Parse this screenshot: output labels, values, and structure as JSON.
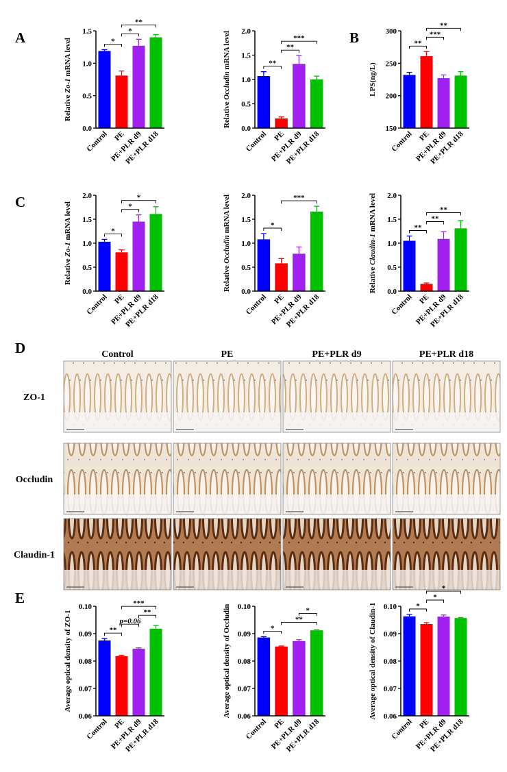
{
  "panels": [
    "A",
    "B",
    "C",
    "D",
    "E"
  ],
  "chart_data": [
    {
      "type": "bar",
      "ylabel": [
        "Relative ",
        "Zo-1",
        " mRNA level"
      ],
      "categories": [
        "Control",
        "PE",
        "PE+PLR d9",
        "PE+PLR d18"
      ],
      "colors": [
        "#0000ff",
        "#ff0000",
        "#a020f0",
        "#00c000"
      ],
      "values": [
        1.19,
        0.81,
        1.27,
        1.4
      ],
      "errors": [
        0.02,
        0.07,
        0.1,
        0.04
      ],
      "ylim": [
        0,
        1.5
      ],
      "yticks": [
        {
          "value": 0,
          "label": "0.0"
        },
        0.5,
        {
          "value": 1,
          "label": "1.0"
        },
        1.5
      ],
      "significance": [
        {
          "from": 0,
          "to": 1,
          "label": "*"
        },
        {
          "from": 1,
          "to": 2,
          "label": "*"
        },
        {
          "from": 1,
          "to": 3,
          "label": "**"
        }
      ]
    },
    {
      "type": "bar",
      "ylabel": [
        "Relative ",
        "Occludin",
        " mRNA level"
      ],
      "categories": [
        "Control",
        "PE",
        "PE+PLR d9",
        "PE+PLR d18"
      ],
      "colors": [
        "#0000ff",
        "#ff0000",
        "#a020f0",
        "#00c000"
      ],
      "values": [
        1.07,
        0.2,
        1.32,
        1.0
      ],
      "errors": [
        0.09,
        0.03,
        0.17,
        0.07
      ],
      "ylim": [
        0,
        2
      ],
      "yticks": [
        {
          "value": 0,
          "label": "0.0"
        },
        0.5,
        {
          "value": 1,
          "label": "1.0"
        },
        1.5,
        {
          "value": 2,
          "label": "2.0"
        }
      ],
      "significance": [
        {
          "from": 0,
          "to": 1,
          "label": "**"
        },
        {
          "from": 1,
          "to": 2,
          "label": "**"
        },
        {
          "from": 1,
          "to": 3,
          "label": "***"
        }
      ]
    },
    {
      "type": "bar",
      "ylabel": [
        "LPS(ng/L)"
      ],
      "categories": [
        "Control",
        "PE",
        "PE+PLR d9",
        "PE+PLR d18"
      ],
      "colors": [
        "#0000ff",
        "#ff0000",
        "#a020f0",
        "#00c000"
      ],
      "values": [
        232,
        261,
        227,
        231
      ],
      "errors": [
        4,
        7,
        5,
        6
      ],
      "ylim": [
        150,
        300
      ],
      "yticks": [
        150,
        200,
        250,
        300
      ],
      "significance": [
        {
          "from": 0,
          "to": 1,
          "label": "**"
        },
        {
          "from": 1,
          "to": 2,
          "label": "***"
        },
        {
          "from": 1,
          "to": 3,
          "label": "**"
        }
      ]
    },
    {
      "type": "bar",
      "ylabel": [
        "Relative ",
        "Zo-1",
        " mRNA level"
      ],
      "categories": [
        "Control",
        "PE",
        "PE+PLR d9",
        "PE+PLR d18"
      ],
      "colors": [
        "#0000ff",
        "#ff0000",
        "#a020f0",
        "#00c000"
      ],
      "values": [
        1.03,
        0.81,
        1.45,
        1.61
      ],
      "errors": [
        0.05,
        0.05,
        0.14,
        0.15
      ],
      "ylim": [
        0,
        2
      ],
      "yticks": [
        {
          "value": 0,
          "label": "0.0"
        },
        0.5,
        {
          "value": 1,
          "label": "1.0"
        },
        1.5,
        {
          "value": 2,
          "label": "2.0"
        }
      ],
      "significance": [
        {
          "from": 0,
          "to": 1,
          "label": "*"
        },
        {
          "from": 1,
          "to": 2,
          "label": "*"
        },
        {
          "from": 1,
          "to": 3,
          "label": "*"
        }
      ]
    },
    {
      "type": "bar",
      "ylabel": [
        "Relative ",
        "Occludin",
        " mRNA level"
      ],
      "categories": [
        "Control",
        "PE",
        "PE+PLR d9",
        "PE+PLR d18"
      ],
      "colors": [
        "#0000ff",
        "#ff0000",
        "#a020f0",
        "#00c000"
      ],
      "values": [
        1.08,
        0.58,
        0.78,
        1.66
      ],
      "errors": [
        0.12,
        0.1,
        0.14,
        0.11
      ],
      "ylim": [
        0,
        2
      ],
      "yticks": [
        {
          "value": 0,
          "label": "0.0"
        },
        0.5,
        {
          "value": 1,
          "label": "1.0"
        },
        1.5,
        {
          "value": 2,
          "label": "2.0"
        }
      ],
      "significance": [
        {
          "from": 0,
          "to": 1,
          "label": "*"
        },
        {
          "from": 1,
          "to": 3,
          "label": "***"
        }
      ]
    },
    {
      "type": "bar",
      "ylabel": [
        "Relative ",
        "Claudin-1",
        " mRNA level"
      ],
      "categories": [
        "Control",
        "PE",
        "PE+PLR d9",
        "PE+PLR d18"
      ],
      "colors": [
        "#0000ff",
        "#ff0000",
        "#a020f0",
        "#00c000"
      ],
      "values": [
        1.05,
        0.15,
        1.09,
        1.31
      ],
      "errors": [
        0.1,
        0.02,
        0.15,
        0.16
      ],
      "ylim": [
        0,
        2
      ],
      "yticks": [
        {
          "value": 0,
          "label": "0.0"
        },
        0.5,
        {
          "value": 1,
          "label": "1.0"
        },
        1.5,
        {
          "value": 2,
          "label": "2.0"
        }
      ],
      "significance": [
        {
          "from": 0,
          "to": 1,
          "label": "**"
        },
        {
          "from": 1,
          "to": 2,
          "label": "**"
        },
        {
          "from": 1,
          "to": 3,
          "label": "**"
        }
      ]
    },
    {
      "type": "bar",
      "ylabel": [
        "Average optical density of ZO-1"
      ],
      "categories": [
        "Control",
        "PE",
        "PE+PLR d9",
        "PE+PLR d18"
      ],
      "colors": [
        "#0000ff",
        "#ff0000",
        "#a020f0",
        "#00c000"
      ],
      "values": [
        0.0875,
        0.0818,
        0.0845,
        0.0918
      ],
      "errors": [
        0.0007,
        0.0003,
        0.0003,
        0.0012
      ],
      "ylim": [
        0.06,
        0.1
      ],
      "yticks": [
        0.06,
        0.07,
        0.08,
        0.09,
        {
          "value": 0.1,
          "label": "0.10"
        }
      ],
      "significance": [
        {
          "from": 0,
          "to": 1,
          "label": "**"
        },
        {
          "from": 1,
          "to": 2,
          "label": "p=0.06"
        },
        {
          "from": 2,
          "to": 3,
          "label": "**"
        },
        {
          "from": 1,
          "to": 3,
          "label": "***"
        }
      ]
    },
    {
      "type": "bar",
      "ylabel": [
        "Average optical density of Occludin"
      ],
      "categories": [
        "Control",
        "PE",
        "PE+PLR d9",
        "PE+PLR d18"
      ],
      "colors": [
        "#0000ff",
        "#ff0000",
        "#a020f0",
        "#00c000"
      ],
      "values": [
        0.0886,
        0.0853,
        0.0873,
        0.0912
      ],
      "errors": [
        0.0003,
        0.0002,
        0.0005,
        0.0002
      ],
      "ylim": [
        0.06,
        0.1
      ],
      "yticks": [
        0.06,
        0.07,
        0.08,
        0.09,
        {
          "value": 0.1,
          "label": "0.10"
        }
      ],
      "significance": [
        {
          "from": 0,
          "to": 1,
          "label": "*"
        },
        {
          "from": 1,
          "to": 3,
          "label": "**"
        },
        {
          "from": 2,
          "to": 3,
          "label": "*"
        }
      ]
    },
    {
      "type": "bar",
      "ylabel": [
        "Average optical density of Claudin-1"
      ],
      "categories": [
        "Control",
        "PE",
        "PE+PLR d9",
        "PE+PLR d18"
      ],
      "colors": [
        "#0000ff",
        "#ff0000",
        "#a020f0",
        "#00c000"
      ],
      "values": [
        0.0963,
        0.0935,
        0.0962,
        0.0957
      ],
      "errors": [
        0.0007,
        0.0005,
        0.0006,
        0.0002
      ],
      "ylim": [
        0.06,
        0.1
      ],
      "yticks": [
        0.06,
        0.07,
        0.08,
        0.09,
        {
          "value": 0.1,
          "label": "0.10"
        }
      ],
      "significance": [
        {
          "from": 0,
          "to": 1,
          "label": "*"
        },
        {
          "from": 1,
          "to": 2,
          "label": "*"
        },
        {
          "from": 1,
          "to": 3,
          "label": "*"
        }
      ]
    }
  ],
  "micrographs": {
    "columns": [
      "Control",
      "PE",
      "PE+PLR d9",
      "PE+PLR d18"
    ],
    "rows": [
      "ZO-1",
      "Occludin",
      "Claudin-1"
    ]
  }
}
